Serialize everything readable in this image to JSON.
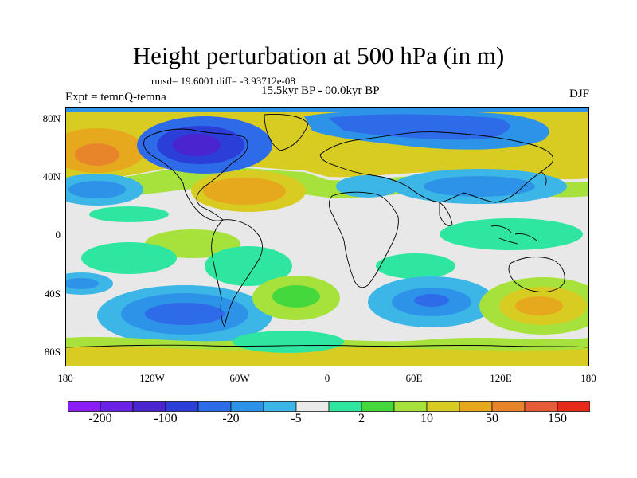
{
  "title": "Height perturbation at 500 hPa (in m)",
  "stats": "rmsd= 19.6001 diff= -3.93712e-08",
  "subtitle": "15.5kyr BP - 00.0kyr BP",
  "experiment": "Expt = temnQ-temna",
  "season": "DJF",
  "map": {
    "lat_ticks": [
      "80N",
      "40N",
      "0",
      "40S",
      "80S"
    ],
    "lon_ticks": [
      "180",
      "120W",
      "60W",
      "0",
      "60E",
      "120E",
      "180"
    ],
    "background_color": "#e8e8e8",
    "coastline_color": "#000000"
  },
  "colorbar": {
    "colors": [
      "#8b1df5",
      "#6a22e6",
      "#4a25cf",
      "#2b3fd8",
      "#2d6be8",
      "#2d93e8",
      "#3cb6e6",
      "#eaeaea",
      "#2ee6a0",
      "#45d83c",
      "#a7e23c",
      "#d8cc22",
      "#e6a91e",
      "#e8842a",
      "#e65c3b",
      "#e62a1a"
    ],
    "labels": [
      "-200",
      "-100",
      "-20",
      "-5",
      "2",
      "10",
      "50",
      "150"
    ]
  }
}
